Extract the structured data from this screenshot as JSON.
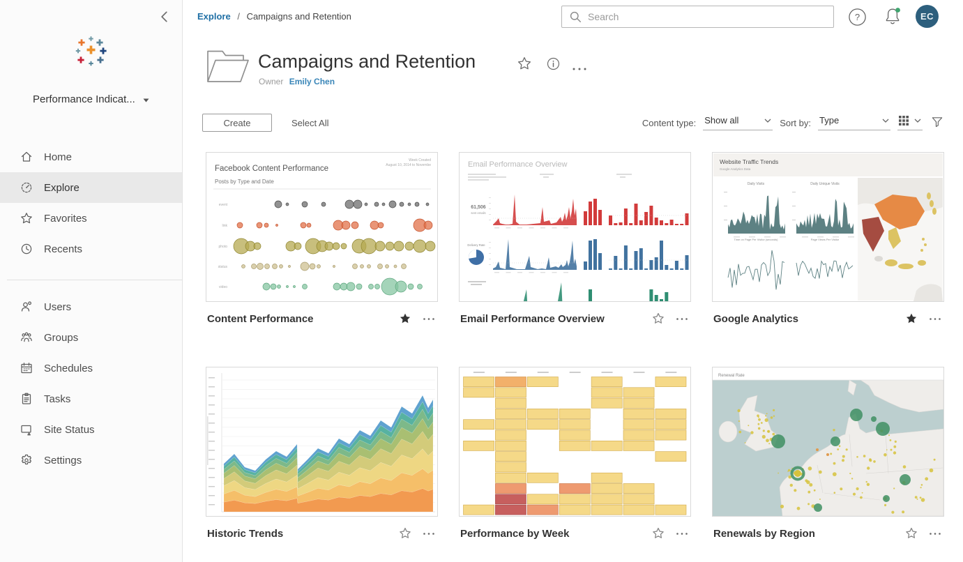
{
  "sidebar": {
    "site_selector": {
      "label": "Performance Indicat..."
    },
    "nav_primary": [
      {
        "label": "Home"
      },
      {
        "label": "Explore"
      },
      {
        "label": "Favorites"
      },
      {
        "label": "Recents"
      }
    ],
    "nav_secondary": [
      {
        "label": "Users"
      },
      {
        "label": "Groups"
      },
      {
        "label": "Schedules"
      },
      {
        "label": "Tasks"
      },
      {
        "label": "Site Status"
      },
      {
        "label": "Settings"
      }
    ]
  },
  "topbar": {
    "breadcrumb": {
      "parent": "Explore",
      "separator": "/",
      "current": "Campaigns and Retention"
    },
    "search_placeholder": "Search",
    "help_glyph": "?",
    "avatar_initials": "EC"
  },
  "header": {
    "title": "Campaigns and Retention",
    "owner_label": "Owner",
    "owner_name": "Emily Chen"
  },
  "toolbar": {
    "create_label": "Create",
    "select_all_label": "Select All",
    "content_type_label": "Content type:",
    "content_type_value": "Show all",
    "sort_by_label": "Sort by:",
    "sort_by_value": "Type"
  },
  "cards": [
    {
      "title": "Content Performance",
      "starred": true,
      "thumb": {
        "heading": "Facebook Content Performance",
        "subheading": "Posts by Type and Date",
        "corner_line1": "Week Created",
        "corner_line2": "August 10, 2014 to Novembe",
        "row_labels": [
          "event",
          "link",
          "photo",
          "status",
          "video"
        ]
      }
    },
    {
      "title": "Email Performance Overview",
      "starred": false,
      "thumb": {
        "heading": "Email Performance Overview",
        "metric_value": "61,506",
        "metric_label": "sent emails",
        "rate_label": "Delivery Rate"
      }
    },
    {
      "title": "Google Analytics",
      "starred": true,
      "thumb": {
        "heading": "Website Traffic Trends",
        "subheading": "Google Analytics Data",
        "panel_titles": [
          "Daily Visits",
          "Daily Unique Visits",
          "Time on Page Per Visitor (seconds)",
          "Page Views Per Visitor"
        ]
      }
    },
    {
      "title": "Historic Trends",
      "starred": false,
      "thumb": {}
    },
    {
      "title": "Performance by Week",
      "starred": false,
      "thumb": {}
    },
    {
      "title": "Renewals by Region",
      "starred": false,
      "thumb": {
        "heading": "Renewal Rate"
      }
    }
  ]
}
